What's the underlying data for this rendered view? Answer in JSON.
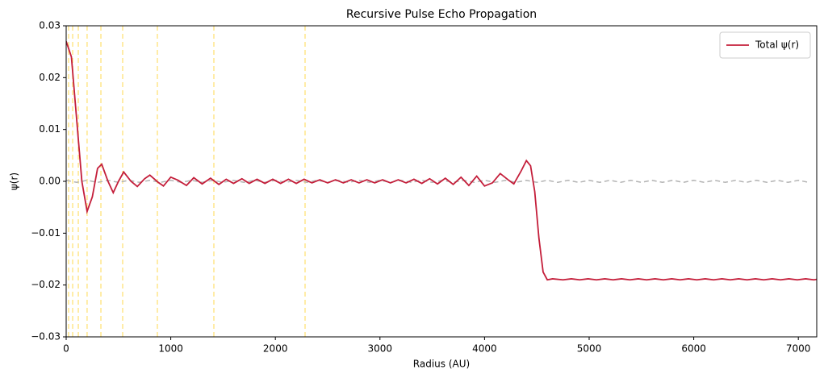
{
  "chart_data": {
    "type": "line",
    "title": "Recursive Pulse Echo Propagation",
    "x_label": "Radius (AU)",
    "y_label": "ψ(r)",
    "xlim": [
      0,
      7176
    ],
    "ylim": [
      -0.03,
      0.03
    ],
    "xticks": [
      0,
      1000,
      2000,
      3000,
      4000,
      5000,
      6000,
      7000
    ],
    "yticks": [
      {
        "value": -0.03,
        "label": "−0.03"
      },
      {
        "value": -0.02,
        "label": "−0.02"
      },
      {
        "value": -0.01,
        "label": "−0.01"
      },
      {
        "value": 0,
        "label": "0.00"
      },
      {
        "value": 0.01,
        "label": "0.01"
      },
      {
        "value": 0.02,
        "label": "0.02"
      },
      {
        "value": 0.03,
        "label": "0.03"
      }
    ],
    "legend": "upper right",
    "vlines": [
      23,
      62,
      116,
      200,
      332,
      540,
      872,
      1412,
      2284
    ],
    "vline_color": "#ffe68a",
    "series": [
      {
        "name": "Total ψ(r)",
        "color": "#c41e3a",
        "dashed": false,
        "x": [
          0,
          50,
          100,
          150,
          200,
          250,
          300,
          340,
          400,
          450,
          500,
          550,
          620,
          680,
          750,
          800,
          880,
          930,
          1000,
          1070,
          1150,
          1220,
          1300,
          1380,
          1460,
          1530,
          1600,
          1680,
          1750,
          1825,
          1900,
          1975,
          2050,
          2125,
          2200,
          2275,
          2350,
          2425,
          2500,
          2575,
          2650,
          2725,
          2800,
          2875,
          2950,
          3025,
          3100,
          3175,
          3250,
          3325,
          3400,
          3475,
          3550,
          3625,
          3700,
          3775,
          3850,
          3925,
          4000,
          4075,
          4150,
          4225,
          4280,
          4350,
          4400,
          4440,
          4480,
          4520,
          4560,
          4600,
          4650,
          4750,
          4830,
          4910,
          4990,
          5070,
          5150,
          5230,
          5310,
          5390,
          5470,
          5550,
          5630,
          5710,
          5790,
          5870,
          5950,
          6030,
          6110,
          6190,
          6270,
          6350,
          6430,
          6510,
          6590,
          6670,
          6750,
          6830,
          6910,
          6990,
          7070,
          7150,
          7176
        ],
        "values": [
          0.027,
          0.024,
          0.012,
          0.0,
          -0.0058,
          -0.003,
          0.0025,
          0.0033,
          0.0,
          -0.0022,
          0.0,
          0.0018,
          0.0,
          -0.001,
          0.0005,
          0.0012,
          -0.0002,
          -0.0009,
          0.0008,
          0.0002,
          -0.0008,
          0.0007,
          -0.0005,
          0.0006,
          -0.0006,
          0.0004,
          -0.0004,
          0.0005,
          -0.0004,
          0.0004,
          -0.0004,
          0.0004,
          -0.0004,
          0.0004,
          -0.0004,
          0.0004,
          -0.0003,
          0.0003,
          -0.0003,
          0.0003,
          -0.0003,
          0.0003,
          -0.0003,
          0.0003,
          -0.0003,
          0.0003,
          -0.0003,
          0.0003,
          -0.0003,
          0.0004,
          -0.0004,
          0.0005,
          -0.0005,
          0.0006,
          -0.0006,
          0.0008,
          -0.0008,
          0.001,
          -0.0009,
          -0.0003,
          0.0015,
          0.0003,
          -0.0005,
          0.002,
          0.004,
          0.003,
          -0.002,
          -0.011,
          -0.0175,
          -0.019,
          -0.0188,
          -0.019,
          -0.0188,
          -0.019,
          -0.0188,
          -0.019,
          -0.0188,
          -0.019,
          -0.0188,
          -0.019,
          -0.0188,
          -0.019,
          -0.0188,
          -0.019,
          -0.0188,
          -0.019,
          -0.0188,
          -0.019,
          -0.0188,
          -0.019,
          -0.0188,
          -0.019,
          -0.0188,
          -0.019,
          -0.0188,
          -0.019,
          -0.0188,
          -0.019,
          -0.0188,
          -0.019,
          -0.0188,
          -0.019,
          -0.0189
        ]
      },
      {
        "color": "#b3b3b3",
        "dashed": true,
        "x": [
          0,
          100,
          200,
          300,
          400,
          500,
          600,
          700,
          800,
          900,
          1000,
          1100,
          1200,
          1300,
          1400,
          1500,
          1600,
          1700,
          1800,
          1900,
          2000,
          2100,
          2200,
          2300,
          2400,
          2500,
          2600,
          2700,
          2800,
          2900,
          3000,
          3100,
          3200,
          3300,
          3400,
          3500,
          3600,
          3700,
          3800,
          3900,
          4000,
          4100,
          4200,
          4300,
          4400,
          4500,
          4600,
          4700,
          4800,
          4900,
          5000,
          5100,
          5200,
          5300,
          5400,
          5500,
          5600,
          5700,
          5800,
          5900,
          6000,
          6100,
          6200,
          6300,
          6400,
          6500,
          6600,
          6700,
          6800,
          6900,
          7000,
          7100
        ],
        "values": [
          0.0002,
          -0.0002,
          0.0002,
          -0.0002,
          0.0002,
          -0.0002,
          0.0002,
          -0.0002,
          0.0002,
          -0.0002,
          0.0002,
          -0.0002,
          0.0002,
          -0.0002,
          0.0002,
          -0.0002,
          0.0002,
          -0.0002,
          0.0002,
          -0.0002,
          0.0002,
          -0.0002,
          0.0002,
          -0.0002,
          0.0002,
          -0.0002,
          0.0002,
          -0.0002,
          0.0002,
          -0.0002,
          0.0002,
          -0.0002,
          0.0002,
          -0.0002,
          0.0002,
          -0.0002,
          0.0002,
          -0.0002,
          0.0002,
          -0.0002,
          0.0002,
          -0.0002,
          0.0002,
          -0.0002,
          0.0002,
          -0.0002,
          0.0002,
          -0.0002,
          0.0002,
          -0.0002,
          0.0002,
          -0.0002,
          0.0002,
          -0.0002,
          0.0002,
          -0.0002,
          0.0002,
          -0.0002,
          0.0002,
          -0.0002,
          0.0002,
          -0.0002,
          0.0002,
          -0.0002,
          0.0002,
          -0.0002,
          0.0002,
          -0.0002,
          0.0002,
          -0.0002,
          0.0002,
          -0.0002
        ]
      }
    ]
  }
}
